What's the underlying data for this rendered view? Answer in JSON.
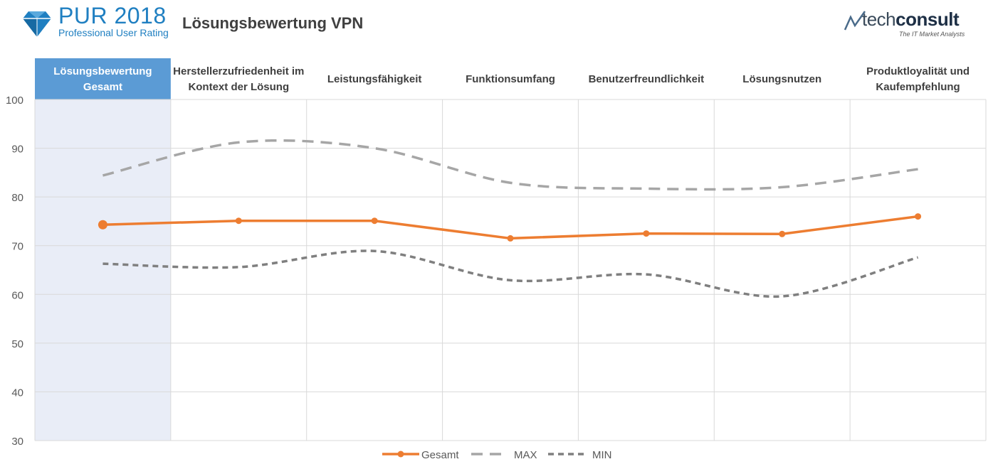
{
  "header": {
    "brand_title": "PUR 2018",
    "brand_subtitle": "Professional User Rating",
    "page_title": "Lösungsbewertung VPN",
    "partner_name_light": "tech",
    "partner_name_bold": "consult",
    "partner_tagline": "The IT Market Analysts"
  },
  "colors": {
    "gesamt": "#ed7d31",
    "max": "#a6a6a6",
    "min": "#7f7f7f",
    "highlight_header": "#5b9bd5",
    "highlight_band": "#e9edf7",
    "brand_blue": "#1f7fc1"
  },
  "chart_data": {
    "type": "line",
    "categories": [
      "Lösungsbewertung Gesamt",
      "Herstellerzufriedenheit im Kontext der Lösung",
      "Leistungsfähigkeit",
      "Funktionsumfang",
      "Benutzerfreundlichkeit",
      "Lösungsnutzen",
      "Produktloyalität und Kaufempfehlung"
    ],
    "category_lines": [
      [
        "Lösungsbewertung",
        "Gesamt"
      ],
      [
        "Herstellerzufriedenheit im",
        "Kontext der Lösung"
      ],
      [
        "Leistungsfähigkeit"
      ],
      [
        "Funktionsumfang"
      ],
      [
        "Benutzerfreundlichkeit"
      ],
      [
        "Lösungsnutzen"
      ],
      [
        "Produktloyalität und",
        "Kaufempfehlung"
      ]
    ],
    "highlighted_category": 0,
    "series": [
      {
        "name": "Gesamt",
        "values": [
          74.3,
          75.1,
          75.1,
          71.5,
          72.5,
          72.4,
          76.0
        ],
        "style": "solid-markers",
        "color": "#ed7d31"
      },
      {
        "name": "MAX",
        "values": [
          84.4,
          91.2,
          90.0,
          82.9,
          81.7,
          82.0,
          85.7
        ],
        "style": "long-dash",
        "color": "#a6a6a6"
      },
      {
        "name": "MIN",
        "values": [
          66.3,
          65.6,
          68.9,
          62.9,
          64.1,
          59.6,
          67.6
        ],
        "style": "short-dash",
        "color": "#7f7f7f"
      }
    ],
    "yticks": [
      30,
      40,
      50,
      60,
      70,
      80,
      90,
      100
    ],
    "ylim": [
      30,
      100
    ],
    "grid": true,
    "legend_position": "bottom"
  }
}
